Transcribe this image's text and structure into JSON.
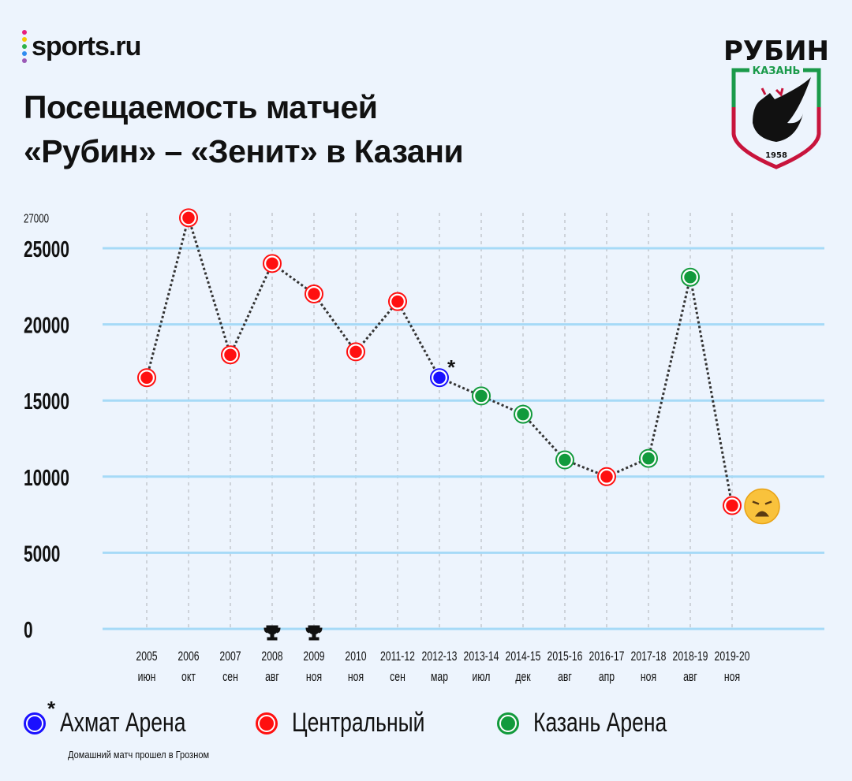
{
  "brand": {
    "name": "sports.ru",
    "dot_colors": [
      "#e8207c",
      "#f7c600",
      "#2db24a",
      "#2f8cf0",
      "#9b59b6"
    ]
  },
  "title": {
    "line1": "Посещаемость матчей",
    "line2": "«Рубин» – «Зенит» в Казани"
  },
  "logo": {
    "text_top": "РУБИН",
    "text_sub": "КАЗАНЬ",
    "year": "1958"
  },
  "legend": {
    "items": [
      {
        "label": "Ахмат Арена",
        "color": "#1a10ff"
      },
      {
        "label": "Центральный",
        "color": "#ff1010"
      },
      {
        "label": "Казань Арена",
        "color": "#129a3c"
      }
    ],
    "asterisk": "*",
    "note": "Домашний матч прошел в Грозном"
  },
  "chart_data": {
    "type": "line",
    "title": "Посещаемость матчей «Рубин» – «Зенит» в Казани",
    "xlabel": "",
    "ylabel": "",
    "ylim": [
      0,
      25000
    ],
    "yticks": [
      "0",
      "5000",
      "10000",
      "15000",
      "20000",
      "25000"
    ],
    "extra_ytick": "27000",
    "grid": true,
    "categories": [
      {
        "season": "2005",
        "month": "июн"
      },
      {
        "season": "2006",
        "month": "окт"
      },
      {
        "season": "2007",
        "month": "сен"
      },
      {
        "season": "2008",
        "month": "авг"
      },
      {
        "season": "2009",
        "month": "ноя"
      },
      {
        "season": "2010",
        "month": "ноя"
      },
      {
        "season": "2011-12",
        "month": "сен"
      },
      {
        "season": "2012-13",
        "month": "мар"
      },
      {
        "season": "2013-14",
        "month": "июл"
      },
      {
        "season": "2014-15",
        "month": "дек"
      },
      {
        "season": "2015-16",
        "month": "авг"
      },
      {
        "season": "2016-17",
        "month": "апр"
      },
      {
        "season": "2017-18",
        "month": "ноя"
      },
      {
        "season": "2018-19",
        "month": "авг"
      },
      {
        "season": "2019-20",
        "month": "ноя"
      }
    ],
    "values": [
      16500,
      27000,
      18000,
      24000,
      22000,
      18200,
      21500,
      16500,
      15300,
      14100,
      11100,
      10000,
      11200,
      23100,
      8100
    ],
    "venues": [
      "Центральный",
      "Центральный",
      "Центральный",
      "Центральный",
      "Центральный",
      "Центральный",
      "Центральный",
      "Ахмат Арена",
      "Казань Арена",
      "Казань Арена",
      "Казань Арена",
      "Центральный",
      "Казань Арена",
      "Казань Арена",
      "Центральный"
    ],
    "annotations": [
      {
        "category": "2012-13",
        "text": "*"
      },
      {
        "category": "2019-20",
        "icon": "weary-face-emoji"
      },
      {
        "category": "2008",
        "icon": "trophy-icon"
      },
      {
        "category": "2009",
        "icon": "trophy-icon"
      }
    ]
  }
}
